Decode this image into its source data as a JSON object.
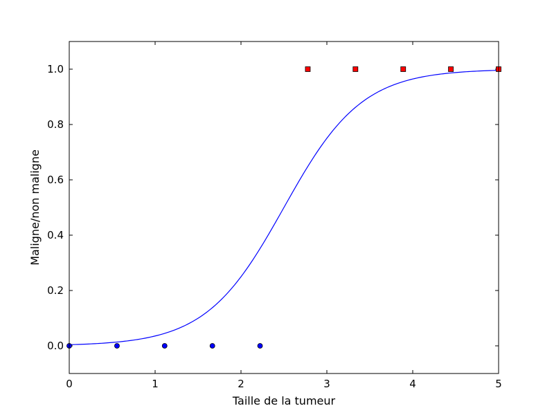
{
  "chart_data": {
    "type": "scatter",
    "xlabel": "Taille de la tumeur",
    "ylabel": "Maligne/non maligne",
    "xlim": [
      0,
      5
    ],
    "ylim": [
      -0.1,
      1.1
    ],
    "xticks": [
      0,
      1,
      2,
      3,
      4,
      5
    ],
    "xtick_labels": [
      "0",
      "1",
      "2",
      "3",
      "4",
      "5"
    ],
    "yticks": [
      0.0,
      0.2,
      0.4,
      0.6,
      0.8,
      1.0
    ],
    "ytick_labels": [
      "0.0",
      "0.2",
      "0.4",
      "0.6",
      "0.8",
      "1.0"
    ],
    "grid": false,
    "series": [
      {
        "kind": "scatter",
        "marker": "circle",
        "color": "#0000ff",
        "x": [
          0.0,
          0.556,
          1.111,
          1.667,
          2.222
        ],
        "y": [
          0,
          0,
          0,
          0,
          0
        ]
      },
      {
        "kind": "scatter",
        "marker": "square",
        "color": "#ff0000",
        "x": [
          2.778,
          3.333,
          3.889,
          4.444,
          5.0
        ],
        "y": [
          1,
          1,
          1,
          1,
          1
        ]
      },
      {
        "kind": "line",
        "color": "#0000ff",
        "model": "logistic",
        "midpoint": 2.5,
        "steepness": 2.2
      }
    ]
  }
}
